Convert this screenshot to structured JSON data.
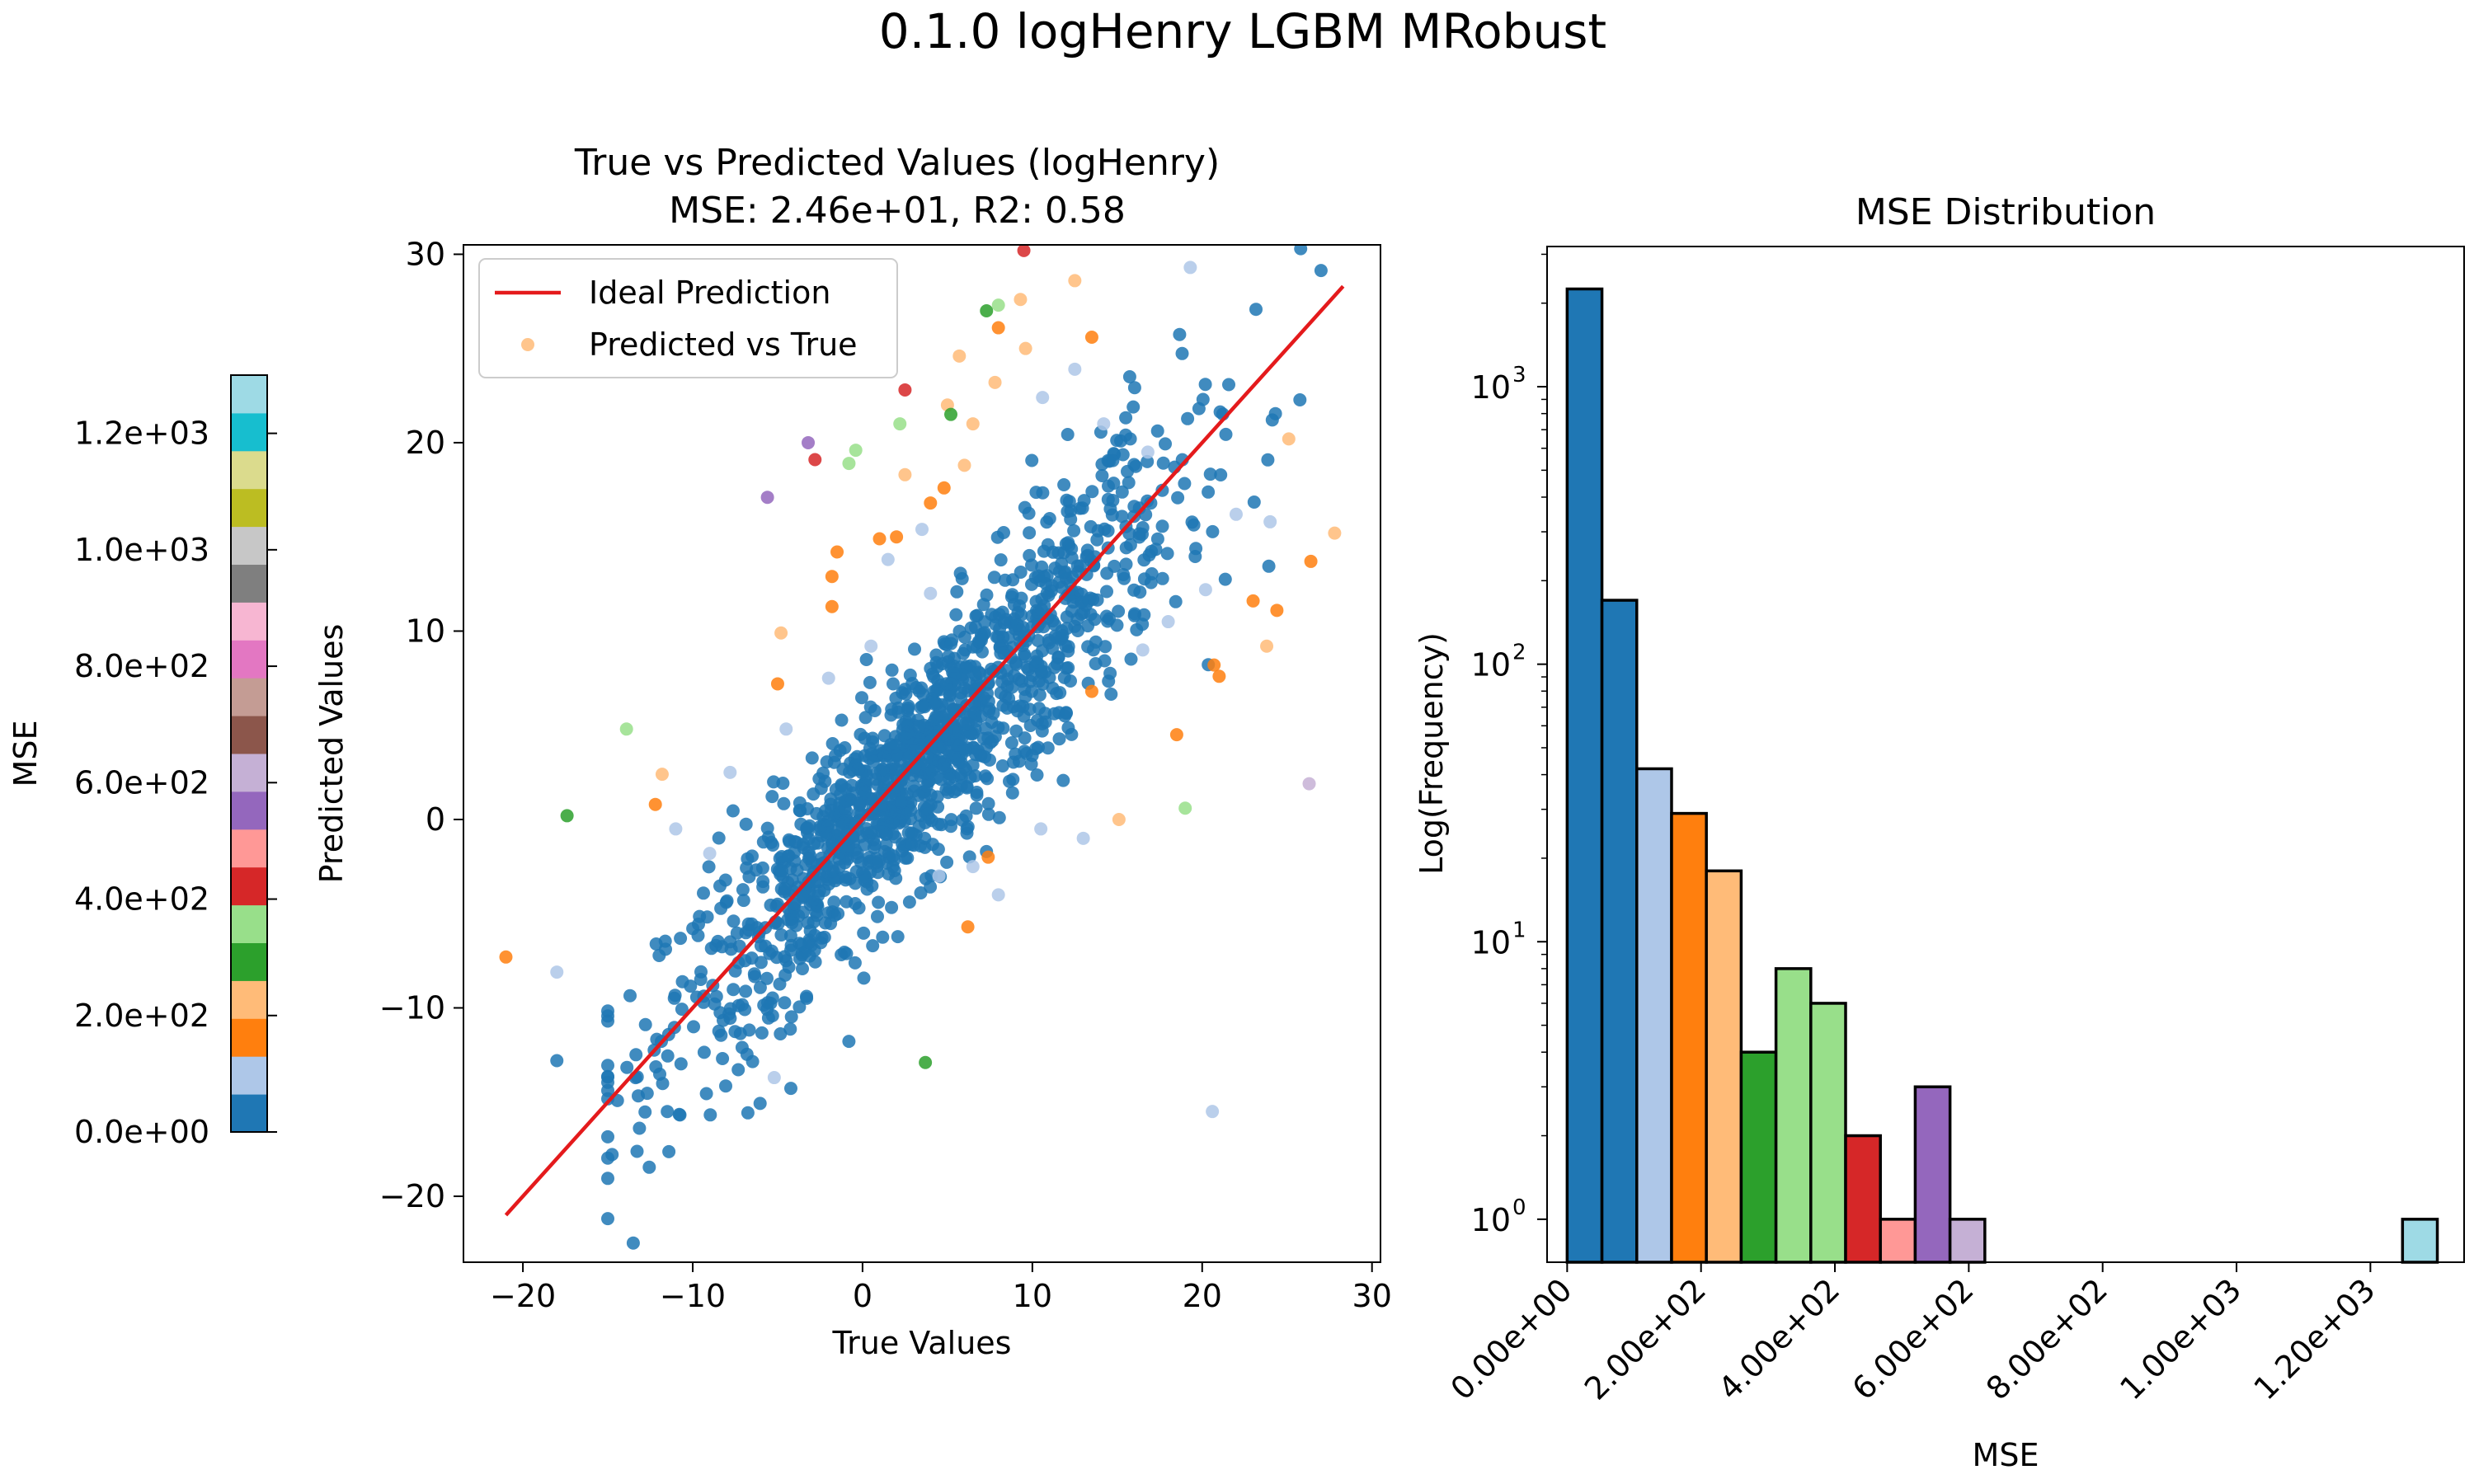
{
  "suptitle": "0.1.0 logHenry LGBM MRobust",
  "colorbar": {
    "label": "MSE",
    "ticks": [
      0,
      200,
      400,
      600,
      800,
      1000,
      1200
    ],
    "tick_labels": [
      "0.0e+00",
      "2.0e+02",
      "4.0e+02",
      "6.0e+02",
      "8.0e+02",
      "1.0e+03",
      "1.2e+03"
    ],
    "range": [
      0,
      1300
    ],
    "palette": [
      "#1f77b4",
      "#aec7e8",
      "#ff7f0e",
      "#ffbb78",
      "#2ca02c",
      "#98df8a",
      "#d62728",
      "#ff9896",
      "#9467bd",
      "#c5b0d5",
      "#8c564b",
      "#c49c94",
      "#e377c2",
      "#f7b6d2",
      "#7f7f7f",
      "#c7c7c7",
      "#bcbd22",
      "#dbdb8d",
      "#17becf",
      "#9edae5"
    ]
  },
  "chart_data": [
    {
      "type": "scatter",
      "title": "True vs Predicted Values (logHenry)",
      "subtitle": "MSE: 2.46e+01, R2: 0.58",
      "xlabel": "True Values",
      "ylabel": "Predicted Values",
      "xlim": [
        -23.5,
        30.5
      ],
      "ylim": [
        -23.5,
        30.5
      ],
      "xticks": [
        -20,
        -10,
        0,
        10,
        20,
        30
      ],
      "yticks": [
        -20,
        -10,
        0,
        10,
        20,
        30
      ],
      "xtick_labels": [
        "−20",
        "−10",
        "0",
        "10",
        "20",
        "30"
      ],
      "ytick_labels": [
        "−20",
        "−10",
        "0",
        "10",
        "20",
        "30"
      ],
      "legend": {
        "placement": "top-left",
        "entries": [
          "Ideal Prediction",
          "Predicted vs True"
        ]
      },
      "ideal_line": {
        "name": "Ideal Prediction",
        "color": "#e41a1c",
        "x": [
          -21,
          28.3
        ],
        "y": [
          -21,
          28.3
        ]
      },
      "series": [
        {
          "name": "Predicted vs True",
          "color_by": "MSE",
          "bulk_cloud": {
            "count": 1400,
            "color": "#1f77b4",
            "note": "dense cluster along the diagonal"
          },
          "points": [
            {
              "x": 9.5,
              "y": 30.2,
              "c": "#d62728"
            },
            {
              "x": 25.8,
              "y": 30.3,
              "c": "#1f77b4"
            },
            {
              "x": 19.3,
              "y": 29.3,
              "c": "#aec7e8"
            },
            {
              "x": 12.5,
              "y": 28.6,
              "c": "#ffbb78"
            },
            {
              "x": 8.0,
              "y": 27.3,
              "c": "#98df8a"
            },
            {
              "x": 7.3,
              "y": 27.0,
              "c": "#2ca02c"
            },
            {
              "x": 9.3,
              "y": 27.6,
              "c": "#ffbb78"
            },
            {
              "x": 8.0,
              "y": 26.1,
              "c": "#ff7f0e"
            },
            {
              "x": 13.5,
              "y": 25.6,
              "c": "#ff7f0e"
            },
            {
              "x": 9.6,
              "y": 25.0,
              "c": "#ffbb78"
            },
            {
              "x": 5.7,
              "y": 24.6,
              "c": "#ffbb78"
            },
            {
              "x": 7.8,
              "y": 23.2,
              "c": "#ffbb78"
            },
            {
              "x": 2.5,
              "y": 22.8,
              "c": "#d62728"
            },
            {
              "x": 5.0,
              "y": 22.0,
              "c": "#ffbb78"
            },
            {
              "x": 5.2,
              "y": 21.5,
              "c": "#2ca02c"
            },
            {
              "x": 2.2,
              "y": 21.0,
              "c": "#98df8a"
            },
            {
              "x": 6.5,
              "y": 21.0,
              "c": "#ffbb78"
            },
            {
              "x": -3.2,
              "y": 20.0,
              "c": "#9467bd"
            },
            {
              "x": -2.8,
              "y": 19.1,
              "c": "#d62728"
            },
            {
              "x": -0.4,
              "y": 19.6,
              "c": "#98df8a"
            },
            {
              "x": -0.8,
              "y": 18.9,
              "c": "#98df8a"
            },
            {
              "x": 2.5,
              "y": 18.3,
              "c": "#ffbb78"
            },
            {
              "x": 4.8,
              "y": 17.6,
              "c": "#ff7f0e"
            },
            {
              "x": -5.6,
              "y": 17.1,
              "c": "#9467bd"
            },
            {
              "x": 6.0,
              "y": 18.8,
              "c": "#ffbb78"
            },
            {
              "x": 4.0,
              "y": 16.8,
              "c": "#ff7f0e"
            },
            {
              "x": 2.0,
              "y": 15.0,
              "c": "#ff7f0e"
            },
            {
              "x": 1.0,
              "y": 14.9,
              "c": "#ff7f0e"
            },
            {
              "x": -1.5,
              "y": 14.2,
              "c": "#ff7f0e"
            },
            {
              "x": -1.8,
              "y": 12.9,
              "c": "#ff7f0e"
            },
            {
              "x": -1.8,
              "y": 11.3,
              "c": "#ff7f0e"
            },
            {
              "x": -4.8,
              "y": 9.9,
              "c": "#ffbb78"
            },
            {
              "x": -5.0,
              "y": 7.2,
              "c": "#ff7f0e"
            },
            {
              "x": -13.9,
              "y": 4.8,
              "c": "#98df8a"
            },
            {
              "x": -11.8,
              "y": 2.4,
              "c": "#ffbb78"
            },
            {
              "x": -12.2,
              "y": 0.8,
              "c": "#ff7f0e"
            },
            {
              "x": -17.4,
              "y": 0.2,
              "c": "#2ca02c"
            },
            {
              "x": -21.0,
              "y": -7.3,
              "c": "#ff7f0e"
            },
            {
              "x": -18.0,
              "y": -12.8,
              "c": "#1f77b4"
            },
            {
              "x": -18.0,
              "y": -8.1,
              "c": "#aec7e8"
            },
            {
              "x": 3.7,
              "y": -12.9,
              "c": "#2ca02c"
            },
            {
              "x": 20.6,
              "y": -15.5,
              "c": "#aec7e8"
            },
            {
              "x": -5.2,
              "y": -13.7,
              "c": "#aec7e8"
            },
            {
              "x": 26.3,
              "y": 1.9,
              "c": "#c5b0d5"
            },
            {
              "x": 19.0,
              "y": 0.6,
              "c": "#98df8a"
            },
            {
              "x": 15.1,
              "y": 0.0,
              "c": "#ffbb78"
            },
            {
              "x": 7.4,
              "y": -2.0,
              "c": "#ff7f0e"
            },
            {
              "x": 6.2,
              "y": -5.7,
              "c": "#ff7f0e"
            },
            {
              "x": 18.5,
              "y": 4.5,
              "c": "#ff7f0e"
            },
            {
              "x": 13.5,
              "y": 6.8,
              "c": "#ff7f0e"
            },
            {
              "x": 21.0,
              "y": 7.6,
              "c": "#ff7f0e"
            },
            {
              "x": 20.7,
              "y": 8.2,
              "c": "#ff7f0e"
            },
            {
              "x": 23.8,
              "y": 9.2,
              "c": "#ffbb78"
            },
            {
              "x": 24.4,
              "y": 11.1,
              "c": "#ff7f0e"
            },
            {
              "x": 23.0,
              "y": 11.6,
              "c": "#ff7f0e"
            },
            {
              "x": 26.4,
              "y": 13.7,
              "c": "#ff7f0e"
            },
            {
              "x": 27.8,
              "y": 15.2,
              "c": "#ffbb78"
            },
            {
              "x": 24.0,
              "y": 15.8,
              "c": "#aec7e8"
            },
            {
              "x": 22.0,
              "y": 16.2,
              "c": "#aec7e8"
            },
            {
              "x": 25.1,
              "y": 20.2,
              "c": "#ffbb78"
            },
            {
              "x": 20.2,
              "y": 12.2,
              "c": "#aec7e8"
            },
            {
              "x": 18.0,
              "y": 10.5,
              "c": "#aec7e8"
            },
            {
              "x": 16.5,
              "y": 9.0,
              "c": "#aec7e8"
            },
            {
              "x": 16.8,
              "y": 19.5,
              "c": "#aec7e8"
            },
            {
              "x": 14.2,
              "y": 21.0,
              "c": "#aec7e8"
            },
            {
              "x": 12.5,
              "y": 23.9,
              "c": "#aec7e8"
            },
            {
              "x": 10.6,
              "y": 22.4,
              "c": "#aec7e8"
            },
            {
              "x": 3.5,
              "y": 15.4,
              "c": "#aec7e8"
            },
            {
              "x": 1.5,
              "y": 13.8,
              "c": "#aec7e8"
            },
            {
              "x": 4.0,
              "y": 12.0,
              "c": "#aec7e8"
            },
            {
              "x": 0.5,
              "y": 9.2,
              "c": "#aec7e8"
            },
            {
              "x": -2.0,
              "y": 7.5,
              "c": "#aec7e8"
            },
            {
              "x": -4.5,
              "y": 4.8,
              "c": "#aec7e8"
            },
            {
              "x": -7.8,
              "y": 2.5,
              "c": "#aec7e8"
            },
            {
              "x": -11.0,
              "y": -0.5,
              "c": "#aec7e8"
            },
            {
              "x": -9.0,
              "y": -1.8,
              "c": "#aec7e8"
            },
            {
              "x": 8.0,
              "y": -4.0,
              "c": "#aec7e8"
            },
            {
              "x": 10.5,
              "y": -0.5,
              "c": "#aec7e8"
            },
            {
              "x": 13.0,
              "y": -1.0,
              "c": "#aec7e8"
            },
            {
              "x": 6.5,
              "y": -2.5,
              "c": "#aec7e8"
            },
            {
              "x": 4.5,
              "y": -3.0,
              "c": "#aec7e8"
            }
          ]
        }
      ]
    },
    {
      "type": "bar",
      "title": "MSE Distribution",
      "xlabel": "MSE",
      "ylabel": "Log(Frequency)",
      "yscale": "log",
      "xlim": [
        -30,
        1340
      ],
      "ylim": [
        0.7,
        3200
      ],
      "xticks": [
        0,
        200,
        400,
        600,
        800,
        1000,
        1200
      ],
      "xtick_labels": [
        "0.00e+00",
        "2.00e+02",
        "4.00e+02",
        "6.00e+02",
        "8.00e+02",
        "1.00e+03",
        "1.20e+03"
      ],
      "yticks": [
        1,
        10,
        100,
        1000
      ],
      "ytick_labels": [
        "10",
        "10",
        "10",
        "10"
      ],
      "ytick_exponents": [
        "0",
        "1",
        "2",
        "3"
      ],
      "bin_width": 52,
      "bins": [
        {
          "x0": 0,
          "value": 2250,
          "color": "#1f77b4"
        },
        {
          "x0": 52,
          "value": 170,
          "color": "#1f77b4"
        },
        {
          "x0": 104,
          "value": 42,
          "color": "#aec7e8"
        },
        {
          "x0": 156,
          "value": 29,
          "color": "#ff7f0e"
        },
        {
          "x0": 208,
          "value": 18,
          "color": "#ffbb78"
        },
        {
          "x0": 260,
          "value": 4,
          "color": "#2ca02c"
        },
        {
          "x0": 312,
          "value": 8,
          "color": "#98df8a"
        },
        {
          "x0": 364,
          "value": 6,
          "color": "#98df8a"
        },
        {
          "x0": 416,
          "value": 2,
          "color": "#d62728"
        },
        {
          "x0": 468,
          "value": 1,
          "color": "#ff9896"
        },
        {
          "x0": 520,
          "value": 3,
          "color": "#9467bd"
        },
        {
          "x0": 572,
          "value": 1,
          "color": "#c5b0d5"
        },
        {
          "x0": 1248,
          "value": 1,
          "color": "#9edae5"
        }
      ]
    }
  ]
}
